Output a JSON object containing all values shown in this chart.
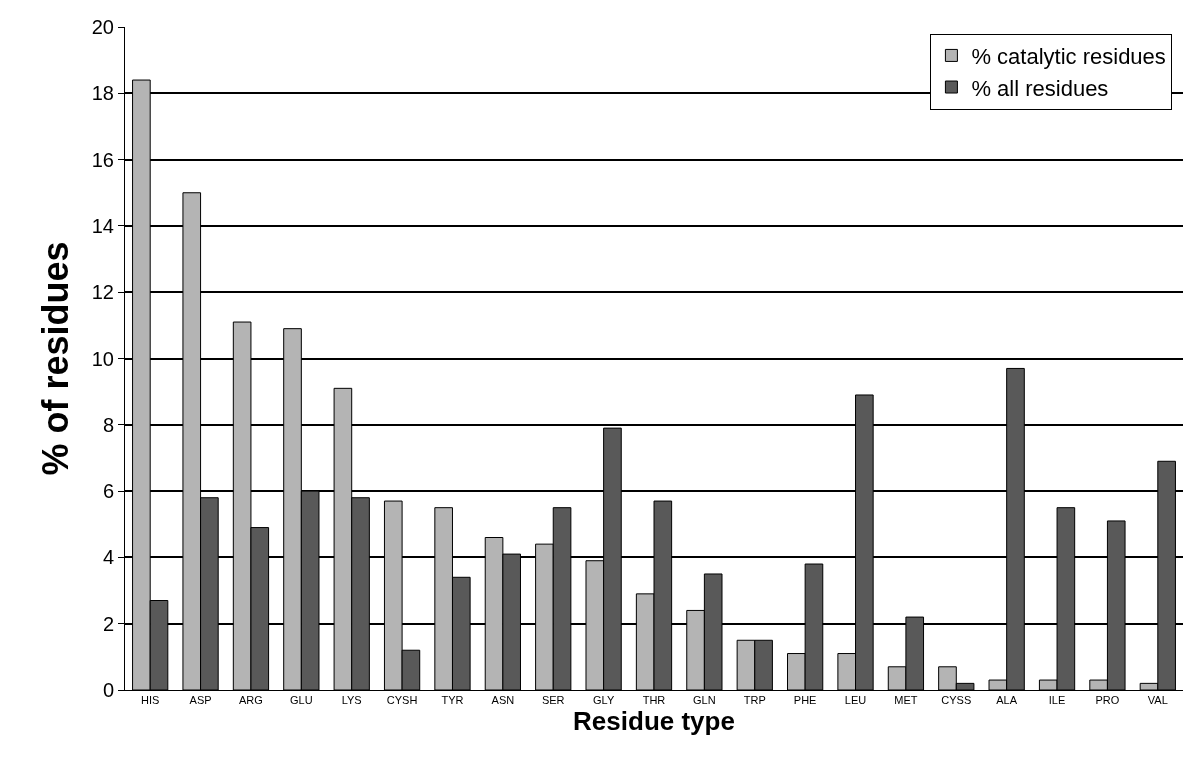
{
  "chart_data": {
    "type": "bar",
    "xlabel": "Residue type",
    "ylabel": "% of residues",
    "categories": [
      "HIS",
      "ASP",
      "ARG",
      "GLU",
      "LYS",
      "CYSH",
      "TYR",
      "ASN",
      "SER",
      "GLY",
      "THR",
      "GLN",
      "TRP",
      "PHE",
      "LEU",
      "MET",
      "CYSS",
      "ALA",
      "ILE",
      "PRO",
      "VAL"
    ],
    "series": [
      {
        "name": "% catalytic residues",
        "color": "#b4b4b4",
        "values": [
          18.4,
          15.0,
          11.1,
          10.9,
          9.1,
          5.7,
          5.5,
          4.6,
          4.4,
          3.9,
          2.9,
          2.4,
          1.5,
          1.1,
          1.1,
          0.7,
          0.7,
          0.3,
          0.3,
          0.3,
          0.2
        ]
      },
      {
        "name": "% all residues",
        "color": "#595959",
        "values": [
          2.7,
          5.8,
          4.9,
          6.0,
          5.8,
          1.2,
          3.4,
          4.1,
          5.5,
          7.9,
          5.7,
          3.5,
          1.5,
          3.8,
          8.9,
          2.2,
          0.2,
          9.7,
          5.5,
          5.1,
          6.9
        ]
      }
    ],
    "ylim": [
      0,
      20
    ],
    "yticks": [
      0,
      2,
      4,
      6,
      8,
      10,
      12,
      14,
      16,
      18,
      20
    ],
    "grid": "y",
    "legend": "top right"
  }
}
